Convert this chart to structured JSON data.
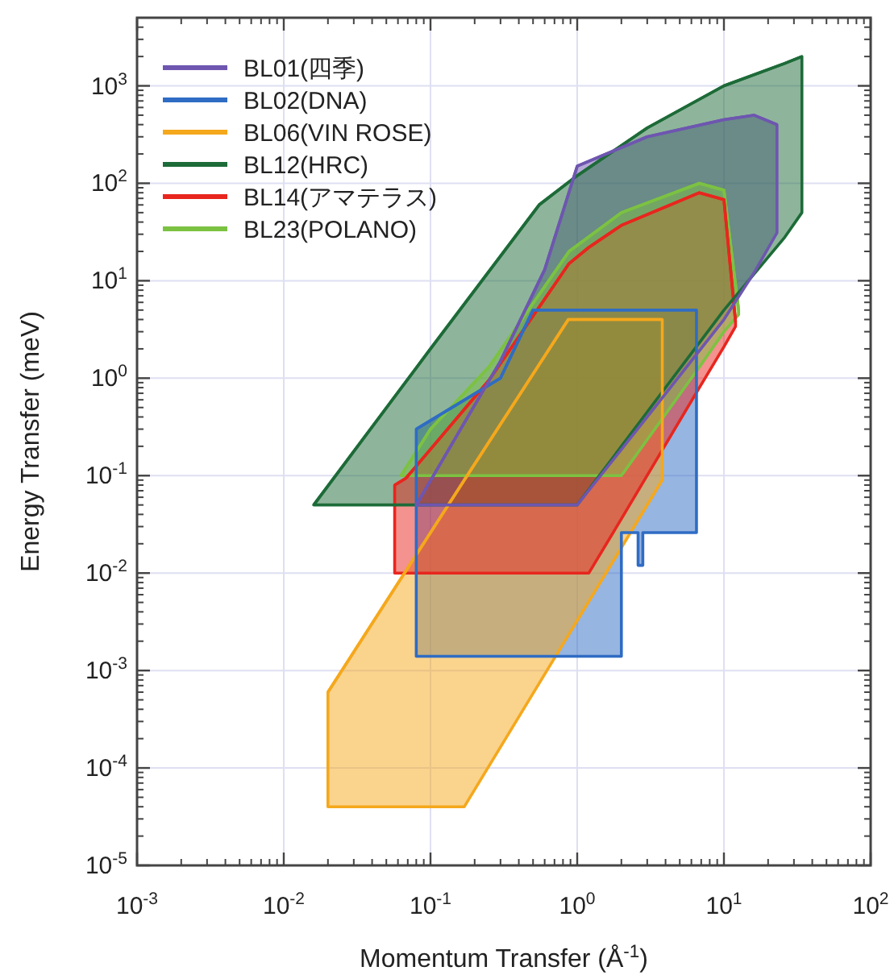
{
  "chart_data": {
    "type": "line",
    "xlabel": "Momentum Transfer (Å$^{-1}$)",
    "ylabel": "Energy Transfer (meV)",
    "log": "xy",
    "grid": true,
    "legend": "top left",
    "xlim": [
      0.001,
      100
    ],
    "ylim": [
      1e-05,
      5000
    ],
    "xticks": [
      {
        "value": 0.001,
        "label": "10$^{-3}$"
      },
      {
        "value": 0.01,
        "label": "10$^{-2}$"
      },
      {
        "value": 0.1,
        "label": "10$^{-1}$"
      },
      {
        "value": 1,
        "label": "10$^{0}$"
      },
      {
        "value": 10,
        "label": "10$^{1}$"
      },
      {
        "value": 100,
        "label": "10$^{2}$"
      }
    ],
    "yticks": [
      {
        "value": 1e-05,
        "label": "10$^{-5}$"
      },
      {
        "value": 0.0001,
        "label": "10$^{-4}$"
      },
      {
        "value": 0.001,
        "label": "10$^{-3}$"
      },
      {
        "value": 0.01,
        "label": "10$^{-2}$"
      },
      {
        "value": 0.1,
        "label": "10$^{-1}$"
      },
      {
        "value": 1,
        "label": "10$^{0}$"
      },
      {
        "value": 10,
        "label": "10$^{1}$"
      },
      {
        "value": 100,
        "label": "10$^{2}$"
      },
      {
        "value": 1000,
        "label": "10$^{3}$"
      }
    ],
    "series": [
      {
        "name": "BL01(四季)",
        "color": "#6e56b0",
        "x": [
          0.08,
          0.3,
          0.6,
          1,
          3,
          10,
          16,
          23
        ],
        "values": [
          0.05,
          1.5,
          13,
          150,
          300,
          450,
          500,
          400
        ],
        "upper": [
          0.05,
          1.5,
          13,
          150,
          300,
          450,
          500,
          400
        ],
        "lower": [
          0.05,
          0.05,
          0.05,
          0.05,
          0.4,
          4,
          12,
          31
        ]
      },
      {
        "name": "BL02(DNA)",
        "color": "#2f6cc4",
        "x": [
          0.08,
          0.3,
          0.5,
          2,
          2,
          2.6,
          2.6,
          2.8,
          2.8,
          6.5
        ],
        "values": [
          0.3,
          1,
          5,
          5,
          5,
          5,
          5,
          5,
          5,
          5
        ],
        "upper": [
          0.3,
          1,
          5,
          5,
          5,
          5,
          5,
          5,
          5,
          5
        ],
        "lower": [
          0.0014,
          0.0014,
          0.0014,
          0.0014,
          0.026,
          0.026,
          0.012,
          0.012,
          0.026,
          0.026
        ]
      },
      {
        "name": "BL06(VIN ROSE)",
        "color": "#f5a81c",
        "x": [
          0.02,
          0.17,
          0.87,
          3.8
        ],
        "values": [
          0.0006,
          0.09,
          4,
          4
        ],
        "upper": [
          0.0006,
          0.09,
          4,
          4
        ],
        "lower": [
          4e-05,
          4e-05,
          0.0023,
          0.09
        ]
      },
      {
        "name": "BL12(HRC)",
        "color": "#1d6b38",
        "x": [
          0.016,
          0.1,
          0.55,
          1,
          3,
          10,
          26,
          34
        ],
        "values": [
          0.05,
          2,
          60,
          120,
          370,
          1000,
          1700,
          2000
        ],
        "upper": [
          0.05,
          2,
          60,
          120,
          370,
          1000,
          1700,
          2000
        ],
        "lower": [
          0.05,
          0.05,
          0.05,
          0.05,
          0.45,
          5,
          28,
          50
        ]
      },
      {
        "name": "BL14(アマテラス)",
        "color": "#e8261e",
        "x": [
          0.057,
          0.068,
          0.25,
          0.88,
          1.2,
          2,
          6.8,
          10,
          12
        ],
        "values": [
          0.08,
          0.094,
          0.95,
          15,
          22,
          37,
          80,
          68,
          3.8
        ],
        "upper": [
          0.08,
          0.094,
          0.95,
          15,
          22,
          37,
          80,
          68,
          3.8
        ],
        "lower": [
          0.01,
          0.01,
          0.01,
          0.01,
          0.01,
          0.036,
          0.8,
          2.1,
          3.4
        ]
      },
      {
        "name": "BL23(POLANO)",
        "color": "#7cc242",
        "x": [
          0.063,
          0.1,
          0.25,
          0.88,
          2,
          6.8,
          10,
          12.6
        ],
        "values": [
          0.1,
          0.3,
          1.3,
          20,
          50,
          100,
          85,
          5
        ],
        "upper": [
          0.1,
          0.3,
          1.3,
          20,
          50,
          100,
          85,
          5
        ],
        "lower": [
          0.1,
          0.1,
          0.1,
          0.1,
          0.1,
          1.3,
          3,
          4.5
        ]
      }
    ]
  }
}
